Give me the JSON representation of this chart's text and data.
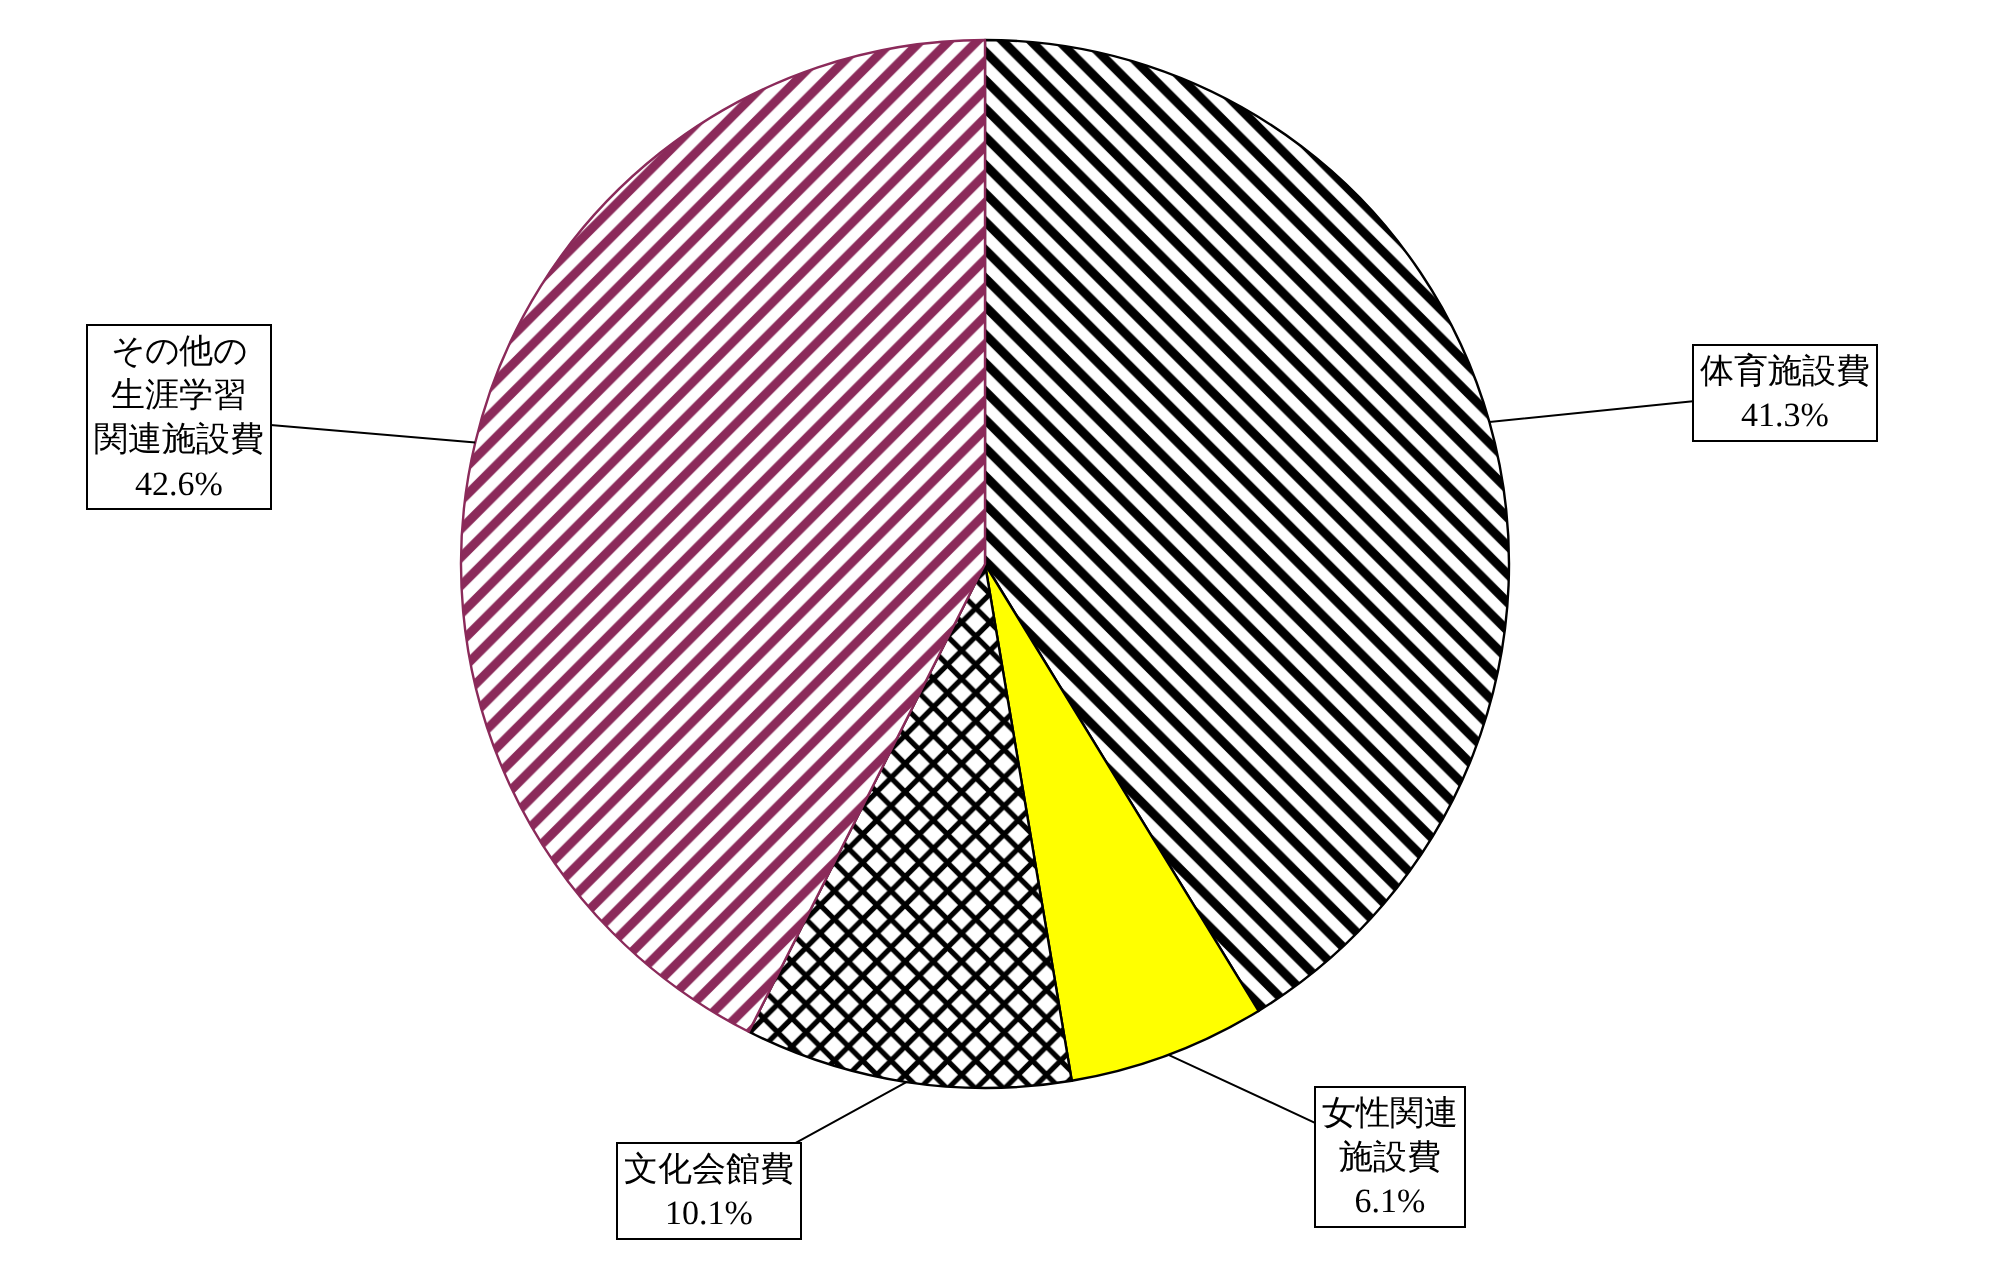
{
  "chart_data": {
    "type": "pie",
    "categories": [
      "体育施設費",
      "女性関連施設費",
      "文化会館費",
      "その他の生涯学習関連施設費"
    ],
    "values": [
      41.3,
      6.1,
      10.1,
      42.6
    ],
    "value_labels": [
      "41.3%",
      "6.1%",
      "10.1%",
      "42.6%"
    ],
    "colors": [
      "#000000",
      "#ffff00",
      "#000000",
      "#8b2a5a"
    ],
    "legend": false
  }
}
